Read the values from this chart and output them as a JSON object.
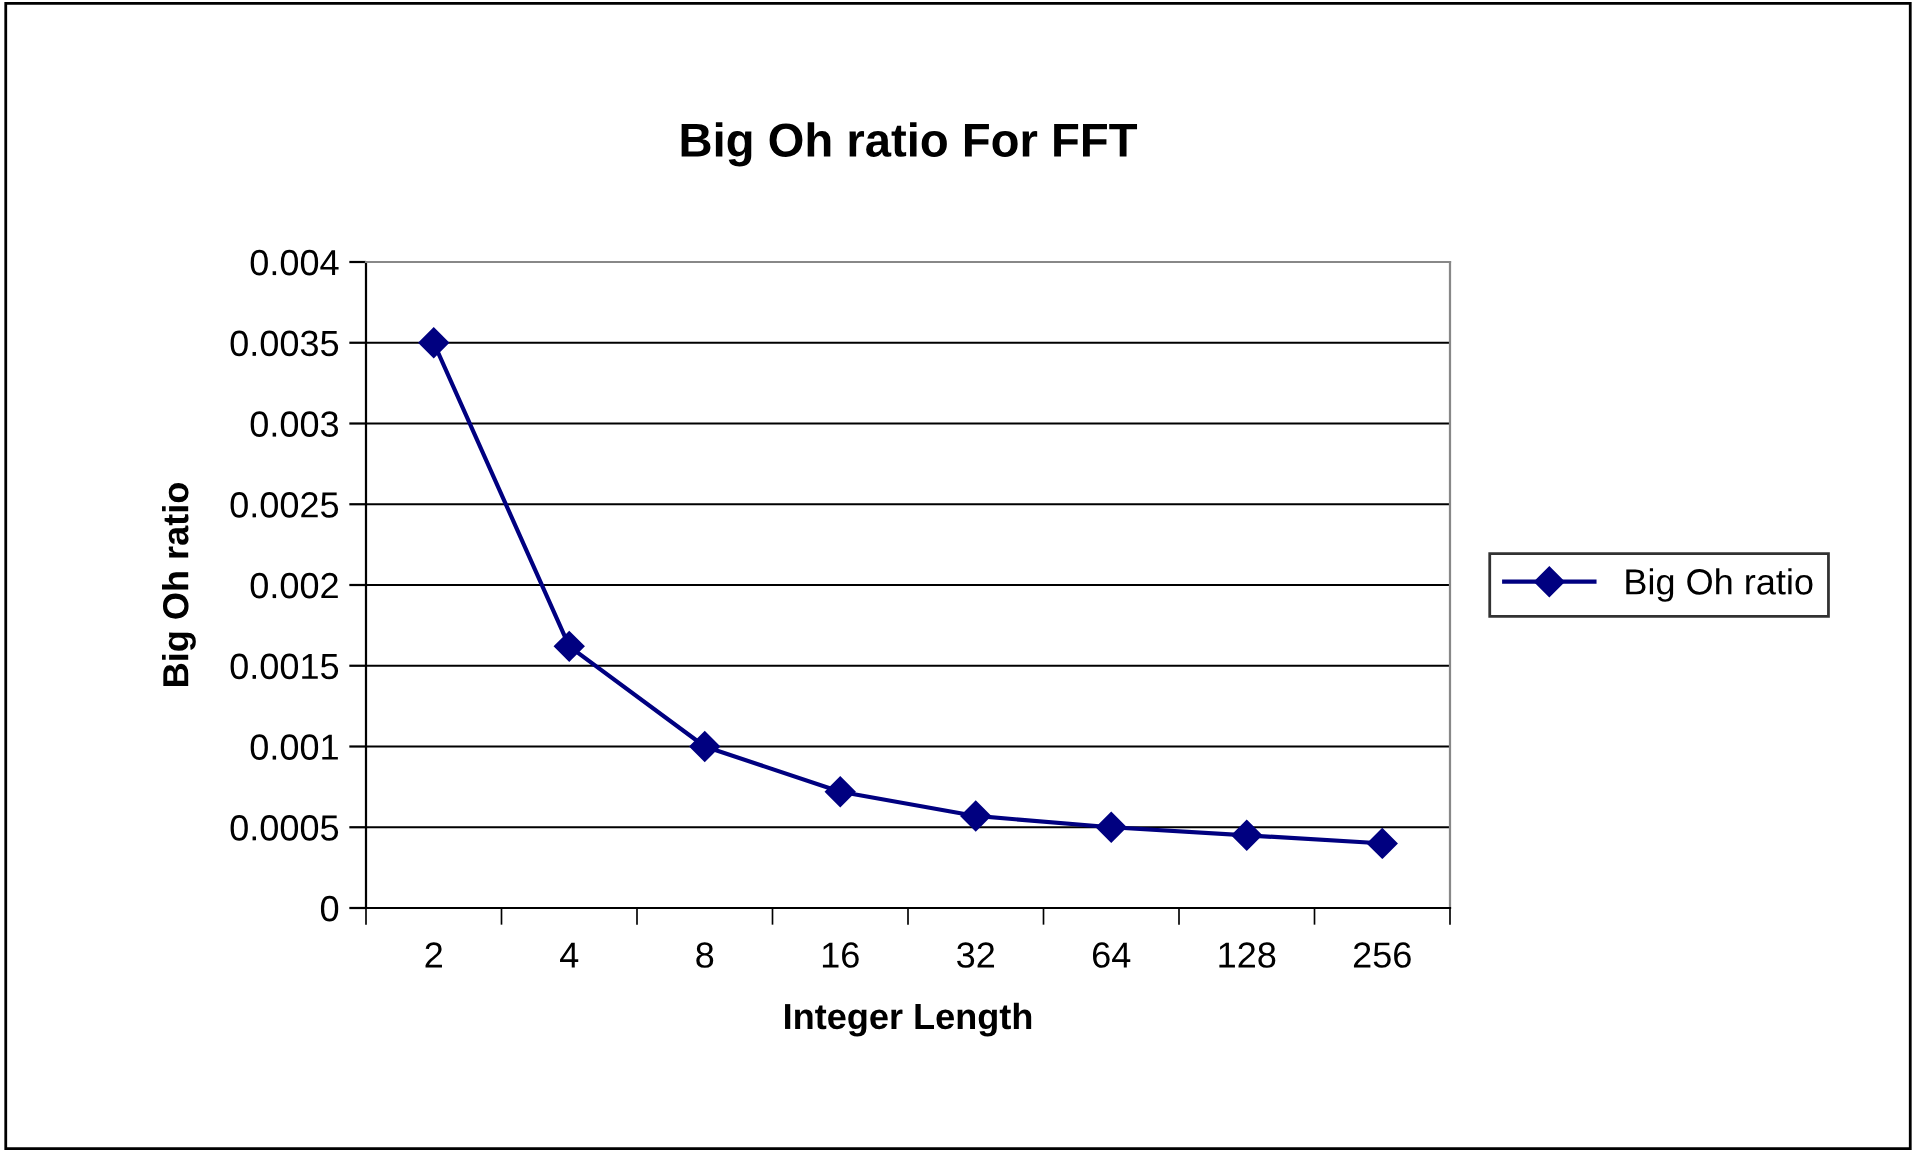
{
  "chart_data": {
    "type": "line",
    "title": "Big Oh ratio For FFT",
    "xlabel": "Integer Length",
    "ylabel": "Big Oh ratio",
    "categories": [
      "2",
      "4",
      "8",
      "16",
      "32",
      "64",
      "128",
      "256"
    ],
    "series": [
      {
        "name": "Big Oh ratio",
        "color": "#000080",
        "values": [
          0.0035,
          0.00162,
          0.001,
          0.00072,
          0.00057,
          0.0005,
          0.00045,
          0.0004
        ]
      }
    ],
    "ylim": [
      0,
      0.004
    ],
    "yticks": [
      0,
      0.0005,
      0.001,
      0.0015,
      0.002,
      0.0025,
      0.003,
      0.0035,
      0.004
    ],
    "grid": "y",
    "legend": "right",
    "marker": "diamond",
    "line_style": "solid"
  }
}
